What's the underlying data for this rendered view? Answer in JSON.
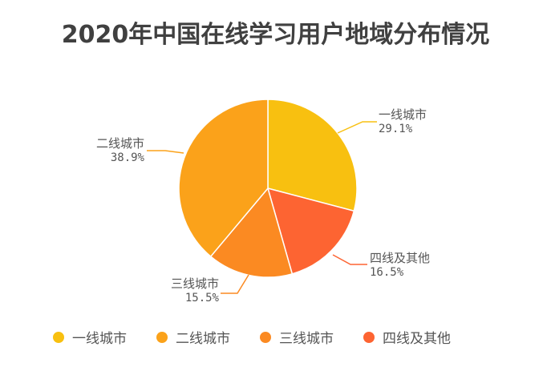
{
  "chart_data": {
    "type": "pie",
    "title": "2020年中国在线学习用户地域分布情况",
    "categories": [
      "一线城市",
      "二线城市",
      "三线城市",
      "四线及其他"
    ],
    "values": [
      29.1,
      38.9,
      15.5,
      16.5
    ],
    "unit": "%",
    "labels": [
      "29.1%",
      "38.9%",
      "15.5%",
      "16.5%"
    ],
    "colors": [
      "#F8C010",
      "#FBA21A",
      "#FB8A22",
      "#FD6432"
    ],
    "legend_position": "bottom",
    "start_angle": "12 o'clock, clockwise order: 一线城市, 四线及其他, 三线城市, 二线城市"
  },
  "title": "2020年中国在线学习用户地域分布情况",
  "slices": {
    "tier1": {
      "name": "一线城市",
      "pct": "29.1%"
    },
    "tier2": {
      "name": "二线城市",
      "pct": "38.9%"
    },
    "tier3": {
      "name": "三线城市",
      "pct": "15.5%"
    },
    "tier4": {
      "name": "四线及其他",
      "pct": "16.5%"
    }
  },
  "legend": [
    {
      "label": "一线城市",
      "color": "#F8C010"
    },
    {
      "label": "二线城市",
      "color": "#FBA21A"
    },
    {
      "label": "三线城市",
      "color": "#FB8A22"
    },
    {
      "label": "四线及其他",
      "color": "#FD6432"
    }
  ]
}
